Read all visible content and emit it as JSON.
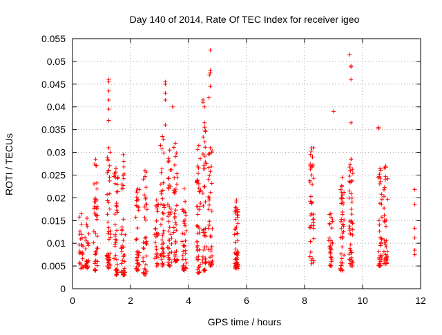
{
  "chart_data": {
    "type": "scatter",
    "title": "Day 140 of 2014, Rate Of TEC Index for receiver igeo",
    "xlabel": "GPS time / hours",
    "ylabel": "ROTI / TECUs",
    "xlim": [
      0,
      12
    ],
    "ylim": [
      0,
      0.055
    ],
    "xticks": [
      0,
      2,
      4,
      6,
      8,
      10,
      12
    ],
    "xtick_labels": [
      "0",
      "2",
      "4",
      "6",
      "8",
      "10",
      "12"
    ],
    "yticks": [
      0,
      0.005,
      0.01,
      0.015,
      0.02,
      0.025,
      0.03,
      0.035,
      0.04,
      0.045,
      0.05,
      0.055
    ],
    "ytick_labels": [
      "0",
      "0.005",
      "0.01",
      "0.015",
      "0.02",
      "0.025",
      "0.03",
      "0.035",
      "0.04",
      "0.045",
      "0.05",
      "0.055"
    ],
    "grid": true,
    "marker": "+",
    "marker_color": "#ff0000",
    "clusters": [
      {
        "x": 0.3,
        "y_min": 0.0045,
        "y_max": 0.0165,
        "n": 24
      },
      {
        "x": 0.5,
        "y_min": 0.0045,
        "y_max": 0.0155,
        "n": 22
      },
      {
        "x": 0.8,
        "y_min": 0.004,
        "y_max": 0.0285,
        "n": 40
      },
      {
        "x": 1.25,
        "y_min": 0.0045,
        "y_max": 0.031,
        "n": 46
      },
      {
        "x": 1.5,
        "y_min": 0.003,
        "y_max": 0.0265,
        "n": 42
      },
      {
        "x": 1.75,
        "y_min": 0.003,
        "y_max": 0.0295,
        "n": 40
      },
      {
        "x": 2.25,
        "y_min": 0.004,
        "y_max": 0.022,
        "n": 32
      },
      {
        "x": 2.5,
        "y_min": 0.003,
        "y_max": 0.026,
        "n": 34
      },
      {
        "x": 2.9,
        "y_min": 0.005,
        "y_max": 0.0195,
        "n": 26
      },
      {
        "x": 3.1,
        "y_min": 0.005,
        "y_max": 0.0335,
        "n": 40
      },
      {
        "x": 3.35,
        "y_min": 0.005,
        "y_max": 0.0305,
        "n": 42
      },
      {
        "x": 3.55,
        "y_min": 0.006,
        "y_max": 0.032,
        "n": 38
      },
      {
        "x": 3.85,
        "y_min": 0.004,
        "y_max": 0.022,
        "n": 34
      },
      {
        "x": 4.35,
        "y_min": 0.0035,
        "y_max": 0.0315,
        "n": 46
      },
      {
        "x": 4.55,
        "y_min": 0.004,
        "y_max": 0.0365,
        "n": 42
      },
      {
        "x": 4.75,
        "y_min": 0.005,
        "y_max": 0.031,
        "n": 40
      },
      {
        "x": 5.65,
        "y_min": 0.0045,
        "y_max": 0.0195,
        "n": 52
      },
      {
        "x": 8.25,
        "y_min": 0.0055,
        "y_max": 0.031,
        "n": 40
      },
      {
        "x": 8.9,
        "y_min": 0.005,
        "y_max": 0.0165,
        "n": 28
      },
      {
        "x": 9.3,
        "y_min": 0.004,
        "y_max": 0.0245,
        "n": 40
      },
      {
        "x": 9.6,
        "y_min": 0.005,
        "y_max": 0.0285,
        "n": 46
      },
      {
        "x": 10.6,
        "y_min": 0.005,
        "y_max": 0.0265,
        "n": 36
      },
      {
        "x": 10.8,
        "y_min": 0.0055,
        "y_max": 0.027,
        "n": 34
      }
    ],
    "outliers": [
      [
        1.25,
        0.046
      ],
      [
        1.25,
        0.0455
      ],
      [
        1.25,
        0.0435
      ],
      [
        1.25,
        0.0415
      ],
      [
        1.25,
        0.0395
      ],
      [
        1.25,
        0.037
      ],
      [
        3.2,
        0.0455
      ],
      [
        3.2,
        0.045
      ],
      [
        3.2,
        0.043
      ],
      [
        3.2,
        0.0415
      ],
      [
        3.2,
        0.036
      ],
      [
        3.45,
        0.04
      ],
      [
        4.5,
        0.0415
      ],
      [
        4.5,
        0.041
      ],
      [
        4.55,
        0.04
      ],
      [
        4.75,
        0.0525
      ],
      [
        4.75,
        0.048
      ],
      [
        4.75,
        0.0475
      ],
      [
        4.72,
        0.047
      ],
      [
        4.75,
        0.0445
      ],
      [
        4.7,
        0.042
      ],
      [
        9.0,
        0.039
      ],
      [
        9.55,
        0.0515
      ],
      [
        9.6,
        0.049
      ],
      [
        9.6,
        0.0488
      ],
      [
        9.6,
        0.046
      ],
      [
        9.6,
        0.0365
      ],
      [
        10.55,
        0.0355
      ],
      [
        10.55,
        0.0352
      ],
      [
        11.8,
        0.0218
      ],
      [
        11.8,
        0.0185
      ],
      [
        11.8,
        0.0133
      ],
      [
        11.8,
        0.0112
      ],
      [
        11.8,
        0.0085
      ],
      [
        11.8,
        0.0075
      ]
    ]
  }
}
